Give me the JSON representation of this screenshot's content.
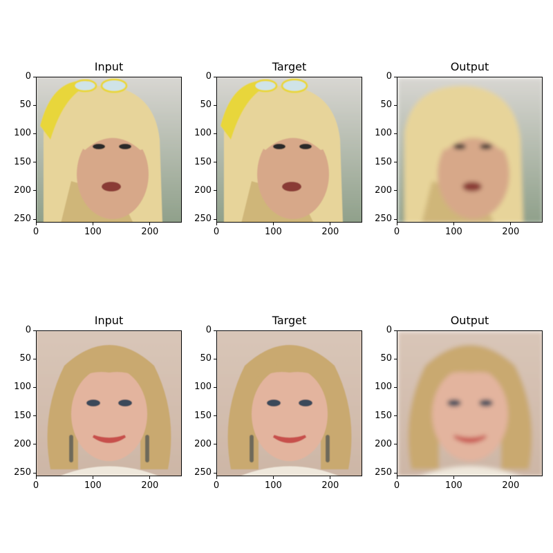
{
  "figure": {
    "rows": [
      {
        "row_id": "row-1",
        "panels": [
          {
            "id": "input",
            "title": "Input",
            "variant": "sharp"
          },
          {
            "id": "target",
            "title": "Target",
            "variant": "sharp"
          },
          {
            "id": "output",
            "title": "Output",
            "variant": "smooth"
          }
        ],
        "subject": {
          "background": "#8fa08a",
          "background_top": "#d8d6d2",
          "skin": "#d7a889",
          "hair": "#e7d49a",
          "hair_shadow": "#b89858",
          "accent": "#e8d63a",
          "lips": "#8a3b35"
        }
      },
      {
        "row_id": "row-2",
        "panels": [
          {
            "id": "input",
            "title": "Input",
            "variant": "sharp"
          },
          {
            "id": "target",
            "title": "Target",
            "variant": "sharp"
          },
          {
            "id": "output",
            "title": "Output",
            "variant": "smooth"
          }
        ],
        "subject": {
          "background": "#cdb6a6",
          "background_top": "#d9c6b8",
          "skin": "#e3b49e",
          "hair": "#c9a96f",
          "hair_shadow": "#8f7446",
          "accent": "#efe8dc",
          "lips": "#c7504c"
        }
      }
    ],
    "axes": {
      "x_ticks": [
        "0",
        "100",
        "200"
      ],
      "y_ticks": [
        "0",
        "50",
        "100",
        "150",
        "200",
        "250"
      ],
      "x_tick_values": [
        0,
        100,
        200
      ],
      "y_tick_values": [
        0,
        50,
        100,
        150,
        200,
        250
      ],
      "range": [
        0,
        256
      ]
    }
  }
}
